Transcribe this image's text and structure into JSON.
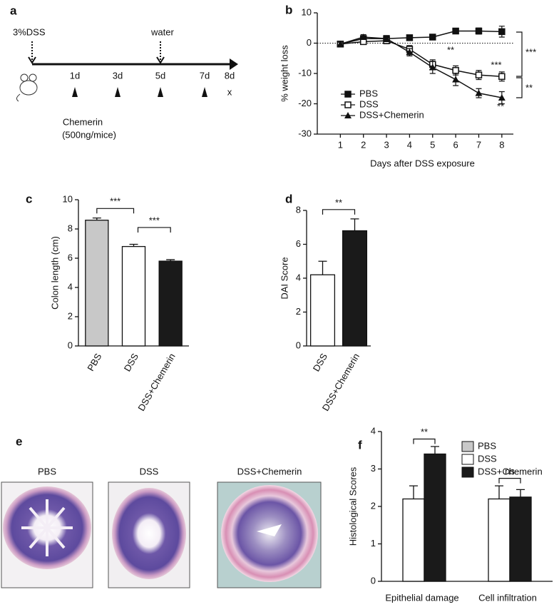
{
  "timeline": {
    "letter": "a",
    "start_label": "3%DSS",
    "water_label": "water",
    "days": [
      "1d",
      "3d",
      "5d",
      "7d",
      "8d"
    ],
    "end_mark": "x",
    "agent": "Chemerin",
    "dose": "(500ng/mice)"
  },
  "histology": {
    "letter": "e",
    "images": [
      "PBS",
      "DSS",
      "DSS+Chemerin"
    ]
  },
  "chart_data": [
    {
      "type": "line",
      "letter": "b",
      "xlabel": "Days after DSS exposure",
      "ylabel": "% weight loss",
      "x": [
        1,
        2,
        3,
        4,
        5,
        6,
        7,
        8
      ],
      "xlim": [
        0,
        8.5
      ],
      "xticks": [
        1,
        2,
        3,
        4,
        5,
        6,
        7,
        8
      ],
      "ylim": [
        -30,
        10
      ],
      "yticks": [
        -30,
        -20,
        -10,
        0,
        10
      ],
      "reference_line": 0,
      "series": [
        {
          "name": "PBS",
          "color": "#111111",
          "marker": "square",
          "values": [
            -0.3,
            1.5,
            1.5,
            1.8,
            2,
            4,
            4,
            3.8
          ],
          "errors": [
            0.6,
            0.8,
            0.8,
            0.8,
            0.6,
            0.8,
            1,
            1.8
          ]
        },
        {
          "name": "DSS",
          "color": "#111111",
          "marker": "open-square",
          "values": [
            -0.3,
            0.5,
            0.8,
            -2,
            -7,
            -9,
            -10.5,
            -11
          ],
          "errors": [
            0.6,
            0.8,
            1,
            1.2,
            1.5,
            1.5,
            1.5,
            1.5
          ]
        },
        {
          "name": "DSS+Chemerin",
          "color": "#111111",
          "marker": "triangle",
          "values": [
            -0.3,
            2,
            1.5,
            -3,
            -8,
            -12,
            -16.5,
            -18
          ],
          "errors": [
            0.6,
            0.8,
            1,
            1.2,
            2,
            2,
            1.5,
            2
          ]
        }
      ],
      "annotations": [
        "**",
        "***",
        "**",
        "***",
        "**"
      ]
    },
    {
      "type": "bar",
      "letter": "c",
      "ylabel": "Colon length (cm)",
      "categories": [
        "PBS",
        "DSS",
        "DSS+Chemerin"
      ],
      "values": [
        8.6,
        6.8,
        5.8
      ],
      "errors": [
        0.15,
        0.15,
        0.1
      ],
      "colors": [
        "#c8c8c8",
        "#ffffff",
        "#1a1a1a"
      ],
      "ylim": [
        0,
        10
      ],
      "yticks": [
        0,
        2,
        4,
        6,
        8,
        10
      ],
      "annotations": [
        "***",
        "***"
      ]
    },
    {
      "type": "bar",
      "letter": "d",
      "ylabel": "DAI Score",
      "categories": [
        "DSS",
        "DSS+Chemerin"
      ],
      "values": [
        4.2,
        6.8
      ],
      "errors": [
        0.8,
        0.7
      ],
      "colors": [
        "#ffffff",
        "#1a1a1a"
      ],
      "ylim": [
        0,
        8
      ],
      "yticks": [
        0,
        2,
        4,
        6,
        8
      ],
      "annotations": [
        "**"
      ]
    },
    {
      "type": "grouped-bar",
      "letter": "f",
      "ylabel": "Histological  Scores",
      "categories": [
        "Epithelial damage",
        "Cell infiltration"
      ],
      "series": [
        {
          "name": "PBS",
          "color": "#c8c8c8",
          "values": [
            null,
            null
          ],
          "errors": [
            null,
            null
          ]
        },
        {
          "name": "DSS",
          "color": "#ffffff",
          "values": [
            2.2,
            2.2
          ],
          "errors": [
            0.35,
            0.35
          ]
        },
        {
          "name": "DSS+Chemerin",
          "color": "#1a1a1a",
          "values": [
            3.4,
            2.25
          ],
          "errors": [
            0.2,
            0.2
          ]
        }
      ],
      "ylim": [
        0,
        4
      ],
      "yticks": [
        0,
        1,
        2,
        3,
        4
      ],
      "annotations": [
        "**",
        "ns"
      ]
    }
  ]
}
